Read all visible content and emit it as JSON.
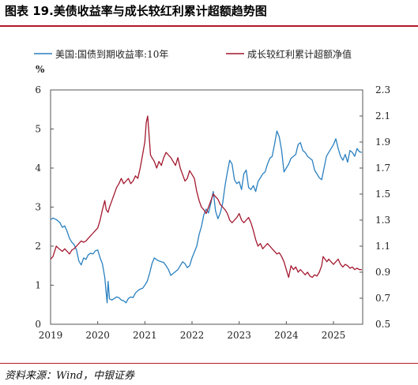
{
  "header": {
    "title": "图表 19.美债收益率与成长较红利累计超额趋势图"
  },
  "footer": {
    "source": "资料来源：Wind，中银证券"
  },
  "chart_data": {
    "type": "line",
    "left_axis_unit": "%",
    "x_ticks": [
      "2019",
      "2020",
      "2021",
      "2022",
      "2023",
      "2024",
      "2025"
    ],
    "y_left": {
      "lim": [
        0,
        6
      ],
      "ticks": [
        "0",
        "1",
        "2",
        "3",
        "4",
        "5",
        "6"
      ]
    },
    "y_right": {
      "lim": [
        0.5,
        2.3
      ],
      "ticks": [
        "0.5",
        "0.7",
        "0.9",
        "1.1",
        "1.3",
        "1.5",
        "1.7",
        "1.9",
        "2.1",
        "2.3"
      ]
    },
    "x_range": [
      2019.0,
      2025.62
    ],
    "legend_position": "top",
    "grid": false,
    "series": [
      {
        "name": "美国:国债到期收益率:10年",
        "axis": "left",
        "color": "#2a80c0",
        "points": [
          [
            2019.0,
            2.68
          ],
          [
            2019.05,
            2.72
          ],
          [
            2019.12,
            2.68
          ],
          [
            2019.2,
            2.6
          ],
          [
            2019.25,
            2.48
          ],
          [
            2019.3,
            2.52
          ],
          [
            2019.35,
            2.38
          ],
          [
            2019.4,
            2.2
          ],
          [
            2019.45,
            2.1
          ],
          [
            2019.5,
            2.04
          ],
          [
            2019.55,
            1.9
          ],
          [
            2019.6,
            1.62
          ],
          [
            2019.65,
            1.52
          ],
          [
            2019.7,
            1.7
          ],
          [
            2019.75,
            1.66
          ],
          [
            2019.8,
            1.78
          ],
          [
            2019.85,
            1.82
          ],
          [
            2019.9,
            1.8
          ],
          [
            2019.95,
            1.88
          ],
          [
            2020.0,
            1.9
          ],
          [
            2020.05,
            1.7
          ],
          [
            2020.1,
            1.55
          ],
          [
            2020.15,
            1.2
          ],
          [
            2020.18,
            0.8
          ],
          [
            2020.2,
            0.55
          ],
          [
            2020.22,
            1.1
          ],
          [
            2020.25,
            0.65
          ],
          [
            2020.3,
            0.62
          ],
          [
            2020.35,
            0.66
          ],
          [
            2020.4,
            0.7
          ],
          [
            2020.45,
            0.68
          ],
          [
            2020.5,
            0.62
          ],
          [
            2020.55,
            0.6
          ],
          [
            2020.6,
            0.55
          ],
          [
            2020.65,
            0.66
          ],
          [
            2020.7,
            0.7
          ],
          [
            2020.75,
            0.68
          ],
          [
            2020.8,
            0.8
          ],
          [
            2020.85,
            0.86
          ],
          [
            2020.9,
            0.9
          ],
          [
            2020.95,
            0.92
          ],
          [
            2021.0,
            1.0
          ],
          [
            2021.05,
            1.1
          ],
          [
            2021.1,
            1.3
          ],
          [
            2021.15,
            1.55
          ],
          [
            2021.2,
            1.7
          ],
          [
            2021.25,
            1.65
          ],
          [
            2021.3,
            1.62
          ],
          [
            2021.35,
            1.6
          ],
          [
            2021.4,
            1.58
          ],
          [
            2021.45,
            1.5
          ],
          [
            2021.5,
            1.4
          ],
          [
            2021.55,
            1.25
          ],
          [
            2021.6,
            1.3
          ],
          [
            2021.65,
            1.35
          ],
          [
            2021.7,
            1.4
          ],
          [
            2021.75,
            1.5
          ],
          [
            2021.8,
            1.6
          ],
          [
            2021.85,
            1.55
          ],
          [
            2021.9,
            1.45
          ],
          [
            2021.95,
            1.5
          ],
          [
            2022.0,
            1.7
          ],
          [
            2022.05,
            1.85
          ],
          [
            2022.1,
            2.0
          ],
          [
            2022.15,
            2.3
          ],
          [
            2022.2,
            2.5
          ],
          [
            2022.25,
            2.8
          ],
          [
            2022.3,
            2.95
          ],
          [
            2022.35,
            2.85
          ],
          [
            2022.4,
            3.1
          ],
          [
            2022.45,
            3.4
          ],
          [
            2022.5,
            2.9
          ],
          [
            2022.55,
            2.7
          ],
          [
            2022.6,
            2.85
          ],
          [
            2022.65,
            3.1
          ],
          [
            2022.7,
            3.55
          ],
          [
            2022.75,
            3.9
          ],
          [
            2022.8,
            4.2
          ],
          [
            2022.85,
            4.1
          ],
          [
            2022.9,
            3.7
          ],
          [
            2022.95,
            3.6
          ],
          [
            2023.0,
            3.65
          ],
          [
            2023.05,
            3.45
          ],
          [
            2023.1,
            3.85
          ],
          [
            2023.15,
            3.95
          ],
          [
            2023.2,
            3.5
          ],
          [
            2023.25,
            3.45
          ],
          [
            2023.3,
            3.55
          ],
          [
            2023.35,
            3.4
          ],
          [
            2023.4,
            3.65
          ],
          [
            2023.45,
            3.75
          ],
          [
            2023.5,
            3.85
          ],
          [
            2023.55,
            3.9
          ],
          [
            2023.6,
            4.1
          ],
          [
            2023.65,
            4.25
          ],
          [
            2023.7,
            4.3
          ],
          [
            2023.75,
            4.6
          ],
          [
            2023.8,
            4.95
          ],
          [
            2023.85,
            4.8
          ],
          [
            2023.9,
            4.45
          ],
          [
            2023.95,
            3.9
          ],
          [
            2024.0,
            4.0
          ],
          [
            2024.05,
            4.1
          ],
          [
            2024.1,
            4.25
          ],
          [
            2024.15,
            4.3
          ],
          [
            2024.2,
            4.35
          ],
          [
            2024.25,
            4.6
          ],
          [
            2024.3,
            4.65
          ],
          [
            2024.35,
            4.45
          ],
          [
            2024.4,
            4.4
          ],
          [
            2024.45,
            4.3
          ],
          [
            2024.5,
            4.25
          ],
          [
            2024.55,
            4.2
          ],
          [
            2024.6,
            3.95
          ],
          [
            2024.65,
            3.85
          ],
          [
            2024.7,
            3.75
          ],
          [
            2024.75,
            3.7
          ],
          [
            2024.8,
            4.0
          ],
          [
            2024.85,
            4.3
          ],
          [
            2024.9,
            4.4
          ],
          [
            2024.95,
            4.5
          ],
          [
            2025.0,
            4.6
          ],
          [
            2025.05,
            4.75
          ],
          [
            2025.1,
            4.5
          ],
          [
            2025.15,
            4.3
          ],
          [
            2025.2,
            4.2
          ],
          [
            2025.25,
            4.35
          ],
          [
            2025.3,
            4.15
          ],
          [
            2025.35,
            4.45
          ],
          [
            2025.4,
            4.4
          ],
          [
            2025.45,
            4.3
          ],
          [
            2025.5,
            4.5
          ],
          [
            2025.55,
            4.42
          ],
          [
            2025.6,
            4.4
          ]
        ]
      },
      {
        "name": "成长较红利累计超额净值",
        "axis": "right",
        "color": "#a3192f",
        "points": [
          [
            2019.0,
            1.0
          ],
          [
            2019.05,
            1.02
          ],
          [
            2019.12,
            1.1
          ],
          [
            2019.18,
            1.08
          ],
          [
            2019.25,
            1.06
          ],
          [
            2019.3,
            1.08
          ],
          [
            2019.35,
            1.06
          ],
          [
            2019.4,
            1.04
          ],
          [
            2019.45,
            1.07
          ],
          [
            2019.5,
            1.08
          ],
          [
            2019.55,
            1.1
          ],
          [
            2019.6,
            1.12
          ],
          [
            2019.65,
            1.14
          ],
          [
            2019.7,
            1.13
          ],
          [
            2019.75,
            1.14
          ],
          [
            2019.8,
            1.16
          ],
          [
            2019.85,
            1.18
          ],
          [
            2019.9,
            1.2
          ],
          [
            2019.95,
            1.22
          ],
          [
            2020.0,
            1.24
          ],
          [
            2020.05,
            1.3
          ],
          [
            2020.1,
            1.38
          ],
          [
            2020.15,
            1.45
          ],
          [
            2020.18,
            1.38
          ],
          [
            2020.22,
            1.36
          ],
          [
            2020.25,
            1.4
          ],
          [
            2020.3,
            1.45
          ],
          [
            2020.35,
            1.5
          ],
          [
            2020.4,
            1.55
          ],
          [
            2020.45,
            1.58
          ],
          [
            2020.5,
            1.62
          ],
          [
            2020.55,
            1.58
          ],
          [
            2020.6,
            1.6
          ],
          [
            2020.65,
            1.62
          ],
          [
            2020.7,
            1.58
          ],
          [
            2020.75,
            1.6
          ],
          [
            2020.8,
            1.64
          ],
          [
            2020.85,
            1.62
          ],
          [
            2020.9,
            1.7
          ],
          [
            2020.95,
            1.8
          ],
          [
            2021.0,
            1.9
          ],
          [
            2021.03,
            2.05
          ],
          [
            2021.06,
            2.1
          ],
          [
            2021.09,
            1.95
          ],
          [
            2021.12,
            1.8
          ],
          [
            2021.15,
            1.78
          ],
          [
            2021.2,
            1.75
          ],
          [
            2021.25,
            1.7
          ],
          [
            2021.3,
            1.75
          ],
          [
            2021.35,
            1.72
          ],
          [
            2021.4,
            1.78
          ],
          [
            2021.45,
            1.82
          ],
          [
            2021.5,
            1.8
          ],
          [
            2021.55,
            1.78
          ],
          [
            2021.6,
            1.75
          ],
          [
            2021.65,
            1.72
          ],
          [
            2021.7,
            1.78
          ],
          [
            2021.75,
            1.7
          ],
          [
            2021.8,
            1.65
          ],
          [
            2021.85,
            1.6
          ],
          [
            2021.9,
            1.62
          ],
          [
            2021.95,
            1.68
          ],
          [
            2022.0,
            1.65
          ],
          [
            2022.05,
            1.62
          ],
          [
            2022.1,
            1.52
          ],
          [
            2022.15,
            1.45
          ],
          [
            2022.2,
            1.4
          ],
          [
            2022.25,
            1.38
          ],
          [
            2022.3,
            1.35
          ],
          [
            2022.35,
            1.4
          ],
          [
            2022.4,
            1.45
          ],
          [
            2022.45,
            1.5
          ],
          [
            2022.5,
            1.48
          ],
          [
            2022.55,
            1.46
          ],
          [
            2022.6,
            1.42
          ],
          [
            2022.65,
            1.4
          ],
          [
            2022.7,
            1.38
          ],
          [
            2022.75,
            1.35
          ],
          [
            2022.8,
            1.3
          ],
          [
            2022.85,
            1.28
          ],
          [
            2022.9,
            1.3
          ],
          [
            2022.95,
            1.32
          ],
          [
            2023.0,
            1.35
          ],
          [
            2023.05,
            1.3
          ],
          [
            2023.1,
            1.28
          ],
          [
            2023.15,
            1.3
          ],
          [
            2023.2,
            1.32
          ],
          [
            2023.25,
            1.28
          ],
          [
            2023.3,
            1.22
          ],
          [
            2023.35,
            1.15
          ],
          [
            2023.4,
            1.1
          ],
          [
            2023.45,
            1.12
          ],
          [
            2023.5,
            1.08
          ],
          [
            2023.55,
            1.1
          ],
          [
            2023.6,
            1.12
          ],
          [
            2023.65,
            1.1
          ],
          [
            2023.7,
            1.08
          ],
          [
            2023.75,
            1.06
          ],
          [
            2023.8,
            1.04
          ],
          [
            2023.85,
            1.05
          ],
          [
            2023.9,
            1.02
          ],
          [
            2023.95,
            0.98
          ],
          [
            2024.0,
            0.92
          ],
          [
            2024.05,
            0.86
          ],
          [
            2024.1,
            0.95
          ],
          [
            2024.15,
            0.92
          ],
          [
            2024.2,
            0.94
          ],
          [
            2024.25,
            0.9
          ],
          [
            2024.3,
            0.92
          ],
          [
            2024.35,
            0.9
          ],
          [
            2024.4,
            0.88
          ],
          [
            2024.45,
            0.9
          ],
          [
            2024.5,
            0.87
          ],
          [
            2024.55,
            0.86
          ],
          [
            2024.6,
            0.88
          ],
          [
            2024.65,
            0.87
          ],
          [
            2024.7,
            0.9
          ],
          [
            2024.75,
            0.95
          ],
          [
            2024.78,
            1.02
          ],
          [
            2024.82,
            1.0
          ],
          [
            2024.86,
            0.98
          ],
          [
            2024.9,
            1.0
          ],
          [
            2024.95,
            0.98
          ],
          [
            2025.0,
            0.96
          ],
          [
            2025.05,
            0.98
          ],
          [
            2025.1,
            1.0
          ],
          [
            2025.15,
            0.96
          ],
          [
            2025.2,
            0.94
          ],
          [
            2025.25,
            0.96
          ],
          [
            2025.3,
            0.95
          ],
          [
            2025.35,
            0.93
          ],
          [
            2025.4,
            0.94
          ],
          [
            2025.45,
            0.92
          ],
          [
            2025.5,
            0.93
          ],
          [
            2025.55,
            0.92
          ],
          [
            2025.6,
            0.92
          ]
        ]
      }
    ]
  }
}
